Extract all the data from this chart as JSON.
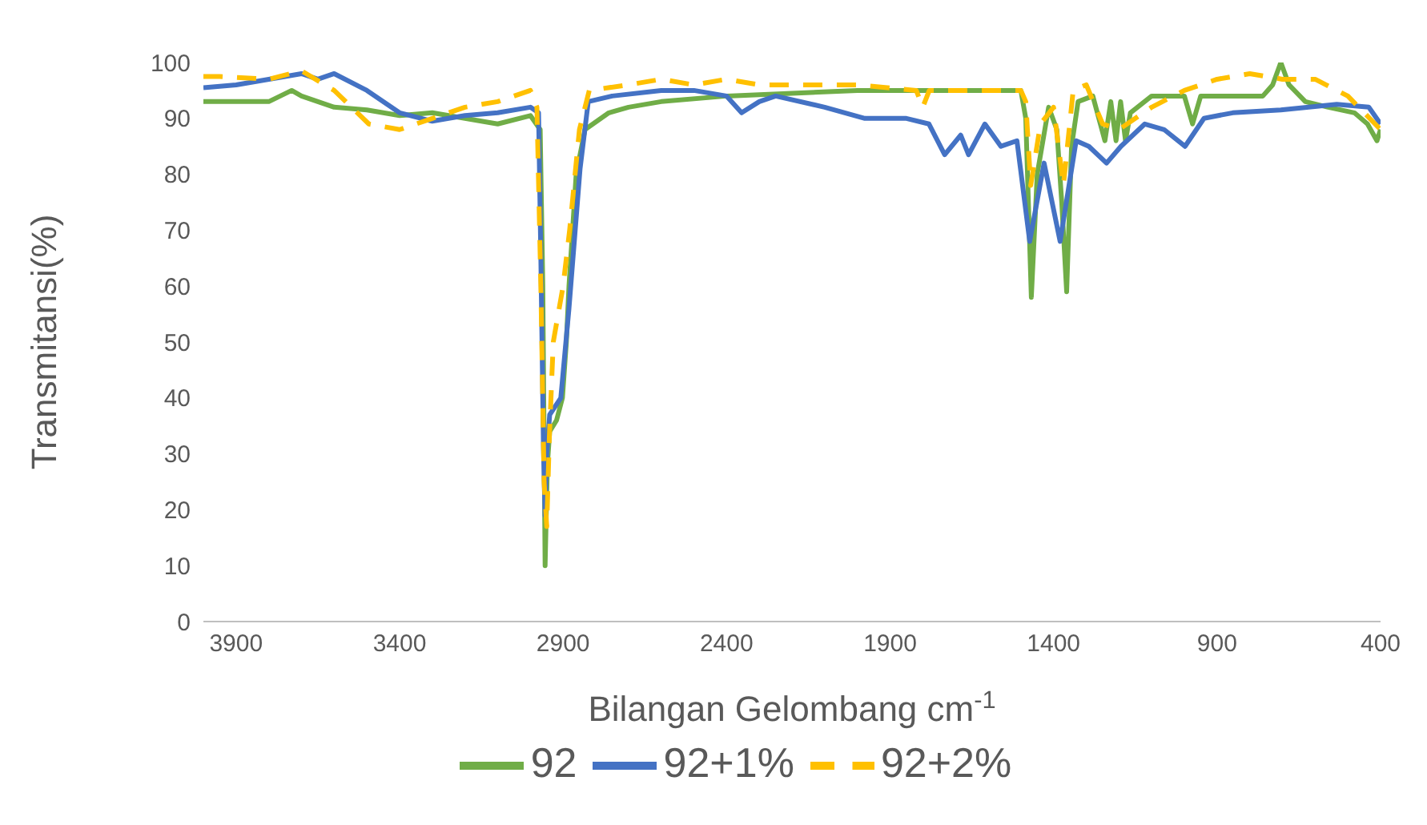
{
  "chart_data": {
    "type": "line",
    "xlabel": "Bilangan Gelombang cm$^{-1}$",
    "ylabel": "Transmitansi(%)",
    "xlim": [
      4000,
      400
    ],
    "xticks": [
      3900,
      3400,
      2900,
      2400,
      1900,
      1400,
      900,
      400
    ],
    "ylim": [
      0,
      100
    ],
    "yticks": [
      0,
      10,
      20,
      30,
      40,
      50,
      60,
      70,
      80,
      90,
      100
    ],
    "legend": "bottom",
    "marker": "none",
    "series": [
      {
        "name": "92",
        "color": "#70ad47",
        "line_style": "solid",
        "x": [
          4000,
          3900,
          3800,
          3730,
          3700,
          3600,
          3500,
          3400,
          3300,
          3200,
          3100,
          3000,
          2970,
          2962,
          2955,
          2948,
          2941,
          2920,
          2902,
          2890,
          2882,
          2860,
          2833,
          2760,
          2700,
          2600,
          2400,
          2200,
          2000,
          1800,
          1600,
          1500,
          1485,
          1468,
          1450,
          1415,
          1390,
          1375,
          1360,
          1345,
          1325,
          1280,
          1243,
          1225,
          1209,
          1195,
          1180,
          1165,
          1100,
          1000,
          975,
          950,
          850,
          760,
          730,
          705,
          680,
          630,
          560,
          480,
          440,
          411,
          400
        ],
        "values": [
          93,
          93,
          93,
          95,
          94,
          92,
          91.5,
          90.5,
          91,
          90,
          89,
          90.5,
          88,
          60,
          10,
          28,
          34,
          36,
          40,
          50,
          60,
          80,
          88,
          91,
          92,
          93,
          94,
          94.5,
          95,
          95,
          95,
          95,
          90,
          58,
          80,
          92,
          88,
          75,
          59,
          85,
          93,
          94,
          86,
          93,
          86,
          93,
          86,
          91,
          94,
          94,
          89,
          94,
          94,
          94,
          96,
          100,
          96,
          93,
          92,
          91,
          89,
          86,
          88
        ]
      },
      {
        "name": "92+1%",
        "color": "#4472c4",
        "line_style": "solid",
        "x": [
          4000,
          3900,
          3800,
          3700,
          3650,
          3600,
          3500,
          3400,
          3300,
          3200,
          3100,
          3000,
          2975,
          2968,
          2960,
          2955,
          2950,
          2941,
          2907,
          2882,
          2848,
          2823,
          2750,
          2600,
          2500,
          2400,
          2354,
          2300,
          2250,
          2100,
          1977,
          1850,
          1781,
          1733,
          1684,
          1660,
          1610,
          1561,
          1512,
          1473,
          1429,
          1380,
          1331,
          1292,
          1238,
          1194,
          1121,
          1062,
          998,
          940,
          852,
          705,
          534,
          436,
          400
        ],
        "values": [
          95.5,
          96,
          97,
          98,
          97,
          98,
          95,
          91,
          89.5,
          90.5,
          91,
          92,
          91,
          65,
          31,
          19,
          30,
          37,
          40,
          56,
          81,
          93,
          94,
          95,
          95,
          94,
          91,
          93,
          94,
          92,
          90,
          90,
          89,
          83.5,
          87,
          83.5,
          89,
          85,
          86,
          68,
          82,
          68,
          86,
          85,
          82,
          85,
          89,
          88,
          85,
          90,
          91,
          91.5,
          92.5,
          92,
          89
        ]
      },
      {
        "name": "92+2%",
        "color": "#ffc000",
        "line_style": "dashed",
        "x": [
          4000,
          3950,
          3800,
          3700,
          3600,
          3494,
          3400,
          3300,
          3200,
          3100,
          3000,
          2980,
          2968,
          2958,
          2950,
          2942,
          2930,
          2900,
          2880,
          2850,
          2820,
          2700,
          2600,
          2500,
          2400,
          2300,
          2000,
          1820,
          1800,
          1780,
          1750,
          1500,
          1485,
          1470,
          1440,
          1400,
          1370,
          1340,
          1300,
          1250,
          1200,
          1100,
          1000,
          900,
          800,
          700,
          600,
          500,
          400
        ],
        "values": [
          97.5,
          97.5,
          97,
          98.5,
          95,
          89,
          88,
          90,
          92,
          93,
          95,
          92,
          60,
          25,
          17,
          33,
          50,
          60,
          70,
          88,
          95,
          96,
          97,
          96,
          97,
          96,
          96,
          95,
          92,
          95,
          95,
          95,
          93,
          78,
          89,
          92,
          78,
          95,
          96,
          89,
          88,
          92,
          95,
          97,
          98,
          97,
          97,
          94,
          88
        ]
      }
    ]
  }
}
